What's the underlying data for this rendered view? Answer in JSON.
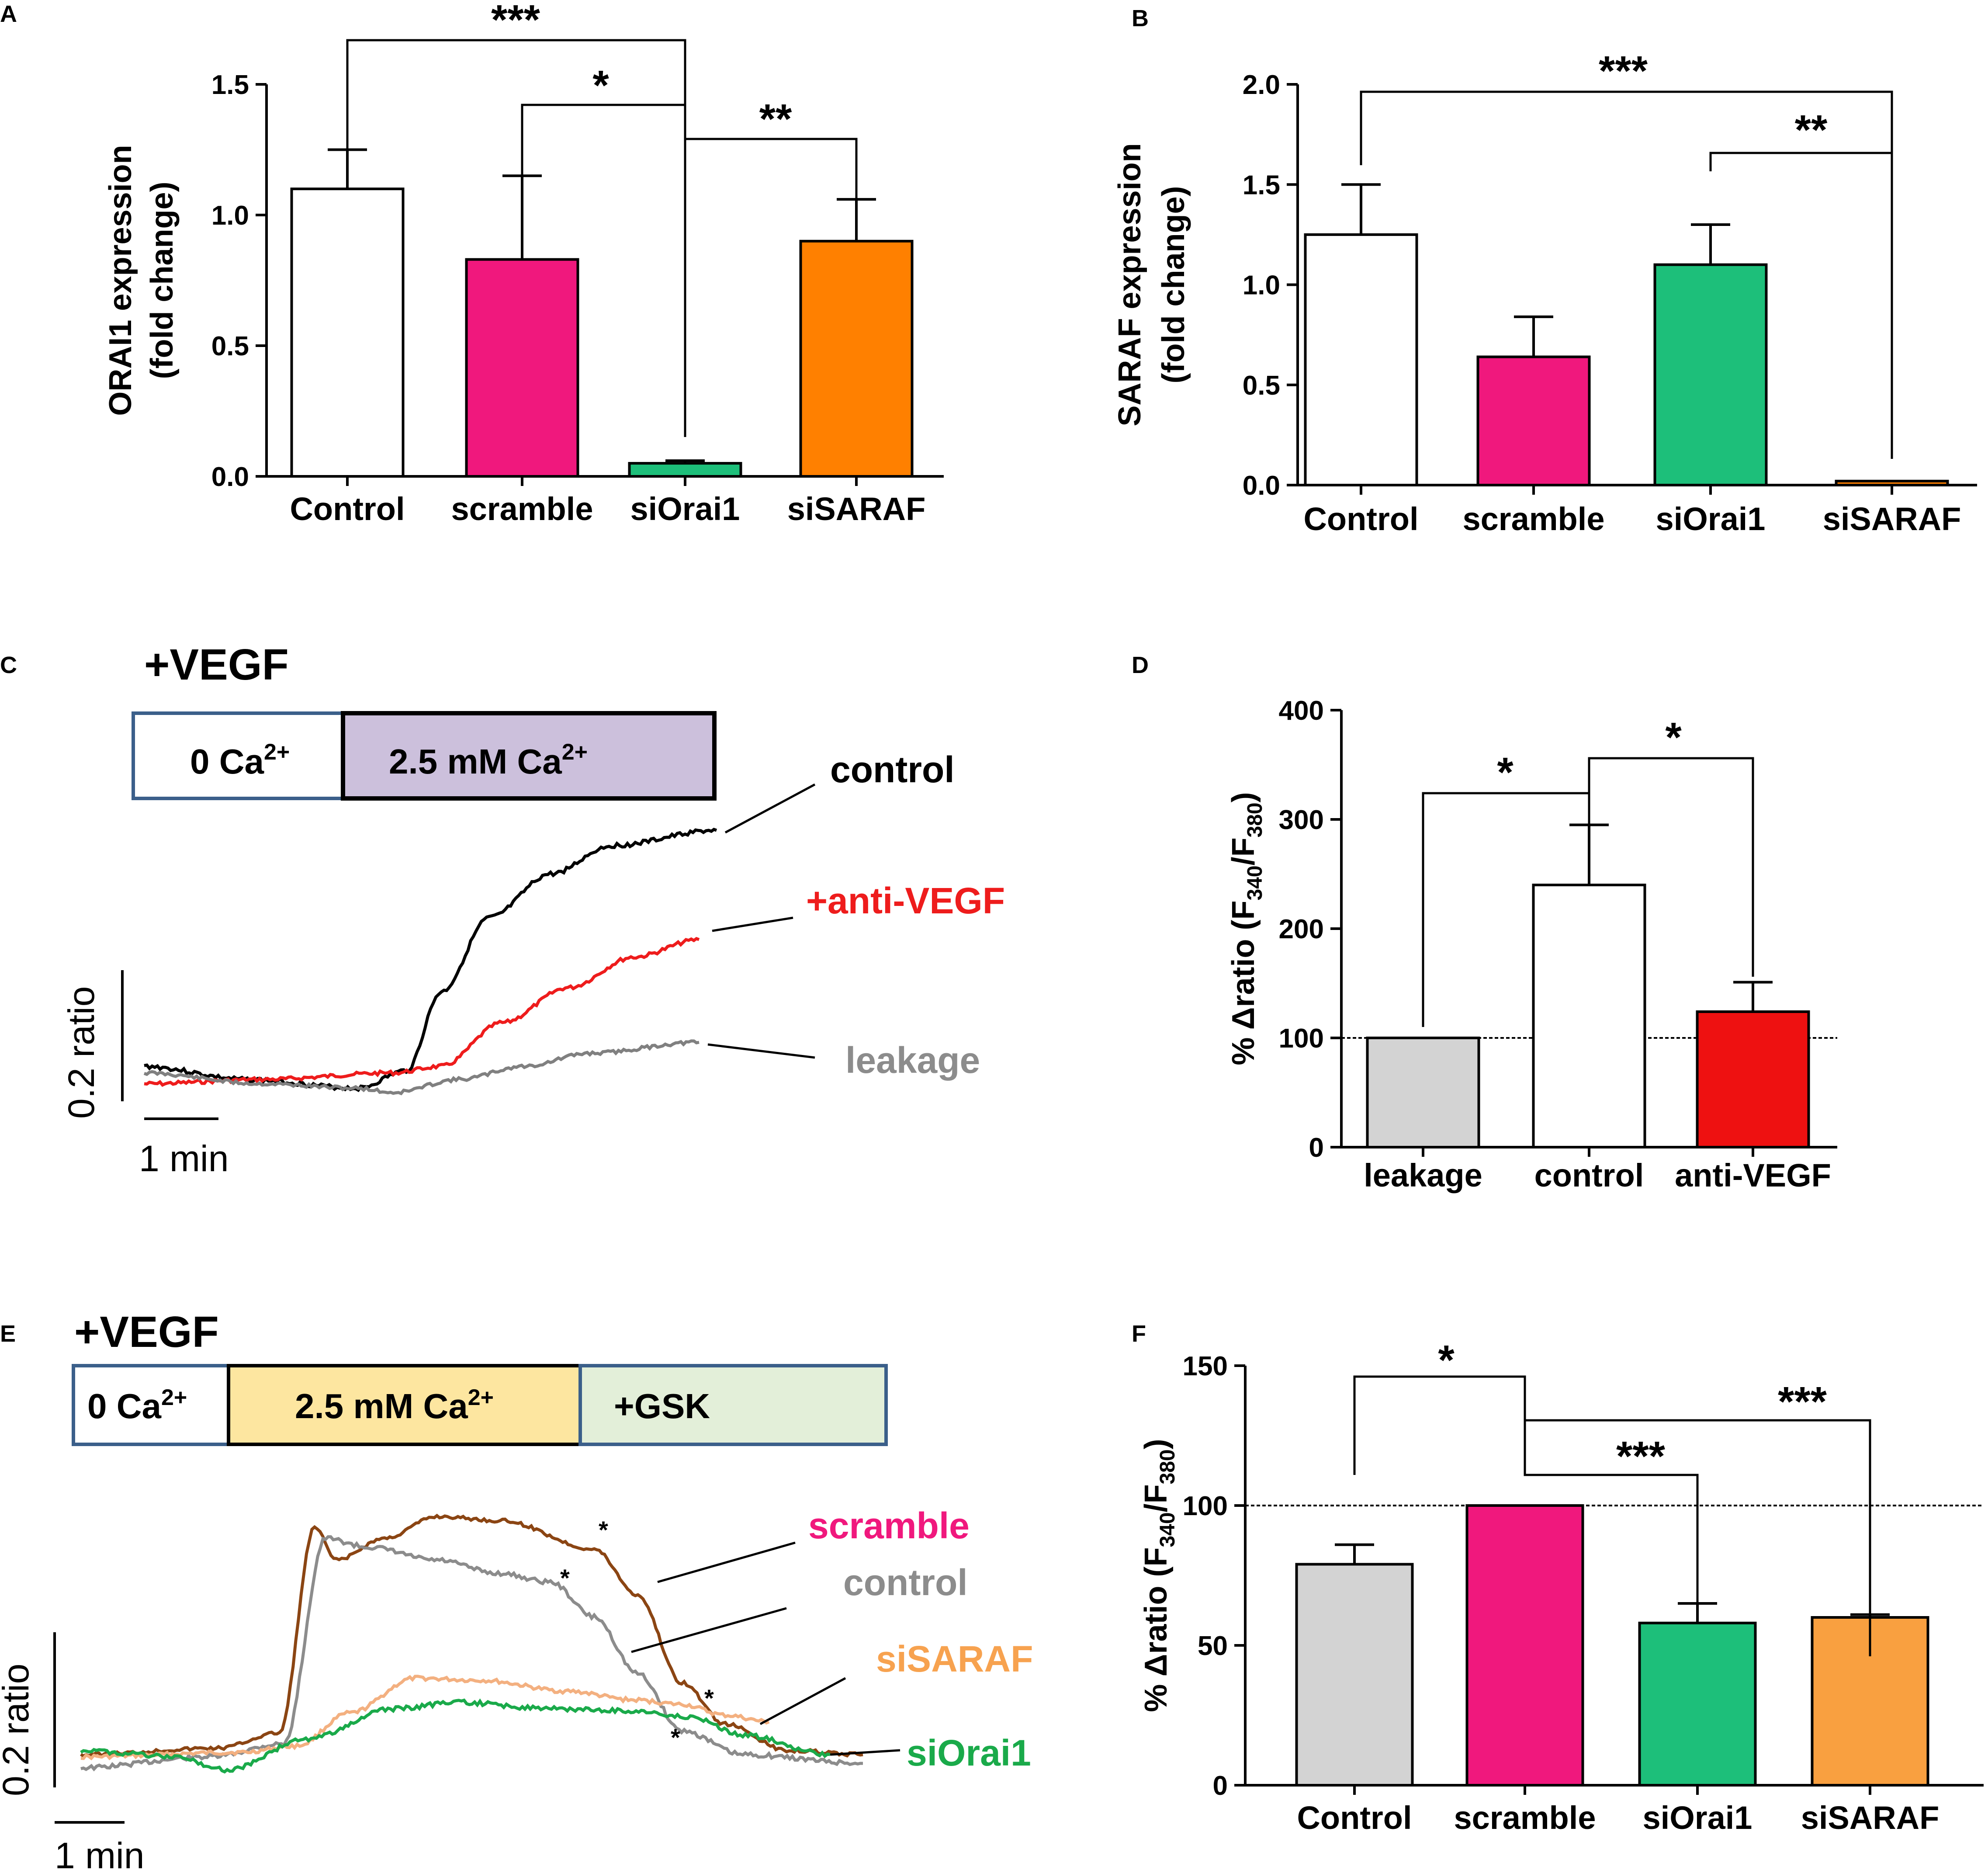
{
  "chart_data": [
    {
      "panel": "A",
      "type": "bar",
      "categories": [
        "Control",
        "scramble",
        "siOrai1",
        "siSARAF"
      ],
      "values": [
        1.1,
        0.83,
        0.05,
        0.9
      ],
      "errors": [
        0.15,
        0.32,
        0.01,
        0.16
      ],
      "colors": [
        "#ffffff",
        "#f0187d",
        "#1dbf7a",
        "#ff8000"
      ],
      "yticks": [
        "0.0",
        "0.5",
        "1.0",
        "1.5"
      ],
      "ylim": [
        0,
        1.5
      ],
      "ylabel_line1": "ORAI1 expression",
      "ylabel_line2": "(fold change)",
      "significance": [
        "***",
        "*",
        "**"
      ]
    },
    {
      "panel": "B",
      "type": "bar",
      "categories": [
        "Control",
        "scramble",
        "siOrai1",
        "siSARAF"
      ],
      "values": [
        1.25,
        0.64,
        1.1,
        0.02
      ],
      "errors": [
        0.25,
        0.2,
        0.2,
        0.0
      ],
      "colors": [
        "#ffffff",
        "#f0187d",
        "#1dbf7a",
        "#ff8000"
      ],
      "yticks": [
        "0.0",
        "0.5",
        "1.0",
        "1.5",
        "2.0"
      ],
      "ylim": [
        0,
        2.0
      ],
      "ylabel_line1": "SARAF expression",
      "ylabel_line2": "(fold change)",
      "significance": [
        "***",
        "**"
      ]
    },
    {
      "panel": "C",
      "type": "line",
      "header": "+VEGF",
      "box_left": "0 Ca",
      "box_right": "2.5 mM Ca",
      "superscript": "2+",
      "series": [
        {
          "name": "control",
          "color": "#000000"
        },
        {
          "name": "+anti-VEGF",
          "color": "#ee1c1c"
        },
        {
          "name": "leakage",
          "color": "#808080"
        }
      ],
      "scale_y": "0.2 ratio",
      "scale_x": "1 min"
    },
    {
      "panel": "D",
      "type": "bar",
      "categories": [
        "leakage",
        "control",
        "anti-VEGF"
      ],
      "values": [
        100,
        240,
        124
      ],
      "errors": [
        0,
        55,
        27
      ],
      "colors": [
        "#d3d3d3",
        "#ffffff",
        "#ee1111"
      ],
      "yticks": [
        "0",
        "100",
        "200",
        "300",
        "400"
      ],
      "ylim": [
        0,
        400
      ],
      "reference_line": 100,
      "ylabel_prefix": "% Δratio (F",
      "ylabel_sub1": "340",
      "ylabel_mid": "/F",
      "ylabel_sub2": "380",
      "ylabel_suffix": ")",
      "significance": [
        "*",
        "*"
      ]
    },
    {
      "panel": "E",
      "type": "line",
      "header": "+VEGF",
      "box_1": "0 Ca",
      "box_2": "2.5 mM Ca",
      "box_3": "+GSK",
      "superscript": "2+",
      "series": [
        {
          "name": "scramble",
          "color": "#8b4513",
          "label_color": "#f0187d"
        },
        {
          "name": "control",
          "color": "#8c8c8c",
          "label_color": "#8c8c8c"
        },
        {
          "name": "siSARAF",
          "color": "#f3b080",
          "label_color": "#f7a24f"
        },
        {
          "name": "siOrai1",
          "color": "#1aaa4a",
          "label_color": "#1aaa4a"
        }
      ],
      "markers": [
        "*",
        "*",
        "*",
        "*"
      ],
      "scale_y": "0.2 ratio",
      "scale_x": "1 min"
    },
    {
      "panel": "F",
      "type": "bar",
      "categories": [
        "Control",
        "scramble",
        "siOrai1",
        "siSARAF"
      ],
      "values": [
        79,
        100,
        58,
        60
      ],
      "errors": [
        7,
        0,
        7,
        1
      ],
      "colors": [
        "#d3d3d3",
        "#f0187d",
        "#1dbf7a",
        "#f9a040"
      ],
      "yticks": [
        "0",
        "50",
        "100",
        "150"
      ],
      "ylim": [
        0,
        150
      ],
      "reference_line": 100,
      "ylabel_prefix": "% Δratio (F",
      "ylabel_sub1": "340",
      "ylabel_mid": "/F",
      "ylabel_sub2": "380",
      "ylabel_suffix": ")",
      "significance": [
        "*",
        "***",
        "***"
      ]
    }
  ]
}
